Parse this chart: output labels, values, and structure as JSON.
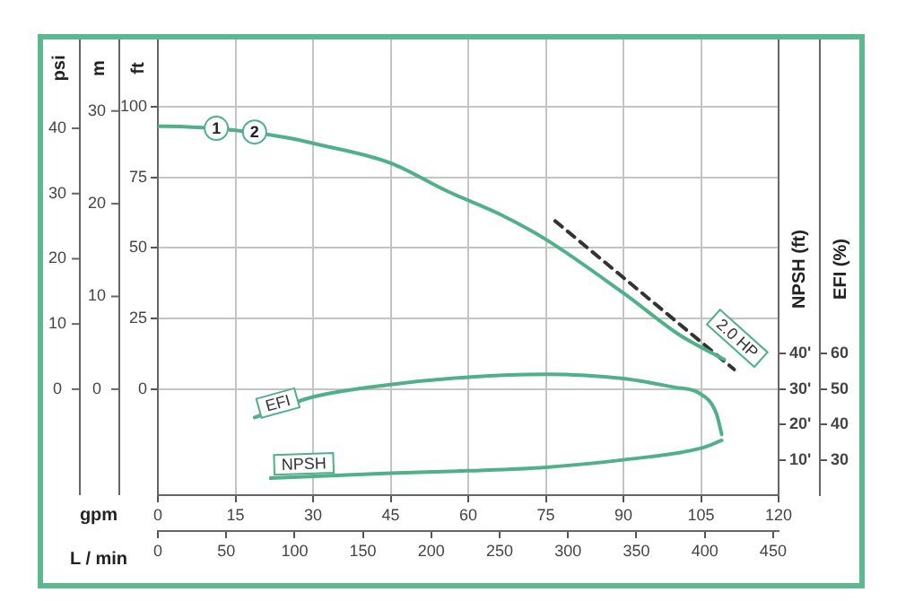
{
  "chart_data": {
    "type": "line",
    "xlabel": "gpm",
    "x2label": "L / min",
    "ylabel": "ft",
    "y2label": "NPSH (ft)",
    "y3label": "EFI (%)",
    "xlim": [
      0,
      120
    ],
    "xticks": [
      0,
      15,
      30,
      45,
      60,
      75,
      90,
      105,
      120
    ],
    "x2lim": [
      0,
      454
    ],
    "x2ticks": [
      0,
      50,
      100,
      150,
      200,
      250,
      300,
      350,
      400,
      450
    ],
    "ylim": [
      -37.5,
      125
    ],
    "yticks": [
      0,
      25,
      50,
      75,
      100
    ],
    "y2lim": [
      0,
      130
    ],
    "y2ticks": [
      {
        "value": 10,
        "label": "10'"
      },
      {
        "value": 20,
        "label": "20'"
      },
      {
        "value": 30,
        "label": "30'"
      },
      {
        "value": 40,
        "label": "40'"
      }
    ],
    "y3lim": [
      20,
      150
    ],
    "y3ticks": [
      30,
      40,
      50,
      60
    ],
    "series": [
      {
        "color": "#4fb08a",
        "axis": "y",
        "x": [
          0,
          5,
          15,
          25,
          30,
          45,
          56,
          66,
          75,
          90,
          101,
          109.5
        ],
        "values": [
          93,
          92.9,
          91.6,
          89,
          87,
          80,
          70,
          62,
          53,
          34,
          19,
          10.5
        ]
      },
      {
        "color": "#333333",
        "axis": "y",
        "line_style": "dashed",
        "x": [
          76.8,
          111.4
        ],
        "values": [
          59.5,
          7
        ]
      },
      {
        "name": "EFI",
        "color": "#4fb08a",
        "axis": "y3",
        "x": [
          18.7,
          30,
          45,
          60,
          75,
          90,
          100,
          104.5,
          108,
          109
        ],
        "values": [
          42,
          47.8,
          51.3,
          53.4,
          54.2,
          53,
          50.5,
          49,
          43,
          37.2
        ]
      },
      {
        "name": "NPSH",
        "color": "#4fb08a",
        "axis": "y2",
        "x": [
          21.8,
          45,
          60,
          75,
          90,
          105,
          109
        ],
        "values": [
          4.8,
          6.2,
          6.9,
          7.9,
          10,
          13.3,
          15.5
        ]
      }
    ],
    "annotations": [
      "psi",
      "40",
      "30",
      "20",
      "10",
      "0",
      "m",
      "30",
      "20",
      "10",
      "0",
      {
        "text": "1",
        "x": 11.3,
        "y": 92.3
      },
      {
        "text": "2",
        "x": 18.7,
        "y": 91
      },
      {
        "text": "2.0 HP",
        "x": 112,
        "y": 18
      }
    ],
    "grid": true,
    "legend": false,
    "marker": "none"
  }
}
